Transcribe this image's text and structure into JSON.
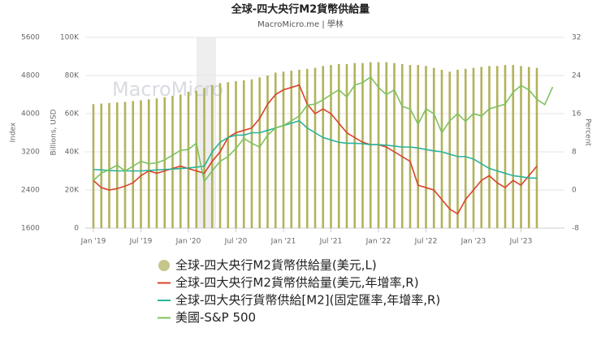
{
  "chart_data": {
    "type": "combo",
    "title": "全球-四大央行M2貨幣供給量",
    "subtitle": "MacroMicro.me | 學林",
    "watermark": "MacroMicro",
    "y_label": "Billions, USD",
    "y2_label": "Percent",
    "y3_label": "Index",
    "categories": [
      "Jan '19",
      null,
      null,
      null,
      null,
      null,
      "Jul '19",
      null,
      null,
      null,
      null,
      null,
      "Jan '20",
      null,
      null,
      null,
      null,
      null,
      "Jul '20",
      null,
      null,
      null,
      null,
      null,
      "Jan '21",
      null,
      null,
      null,
      null,
      null,
      "Jul '21",
      null,
      null,
      null,
      null,
      null,
      "Jan '22",
      null,
      null,
      null,
      null,
      null,
      "Jul '22",
      null,
      null,
      null,
      null,
      null,
      "Jan '23",
      null,
      null,
      null,
      null,
      null,
      "Jul '23",
      null,
      null,
      null,
      null
    ],
    "ylim": [
      0,
      100000
    ],
    "yticks": [
      {
        "value": 0,
        "label": "0"
      },
      {
        "value": 20000,
        "label": "20K"
      },
      {
        "value": 40000,
        "label": "40K"
      },
      {
        "value": 60000,
        "label": "60K"
      },
      {
        "value": 80000,
        "label": "80K"
      },
      {
        "value": 100000,
        "label": "100K"
      }
    ],
    "y2lim": [
      -8,
      32
    ],
    "y2ticks": [
      -8,
      0,
      8,
      16,
      24,
      32
    ],
    "y3lim": [
      1600,
      5600
    ],
    "y3ticks": [
      1600,
      2400,
      3200,
      4000,
      4800,
      5600
    ],
    "grid": true,
    "series": [
      {
        "name": "全球-四大央行M2貨幣供給量(美元,L)",
        "kind": "bar",
        "axis": "y",
        "color": "#b3b25c",
        "values": [
          65000,
          65300,
          65600,
          65900,
          66200,
          66600,
          67000,
          67500,
          68000,
          68600,
          69300,
          70000,
          71500,
          72000,
          73500,
          75000,
          76000,
          76500,
          77000,
          77500,
          78000,
          79000,
          80000,
          81500,
          82000,
          82500,
          83000,
          83500,
          84000,
          85000,
          85500,
          86000,
          86000,
          86500,
          86500,
          87000,
          87000,
          87000,
          86500,
          86000,
          85500,
          85500,
          85000,
          84000,
          83000,
          82000,
          83000,
          83500,
          84000,
          84500,
          85000,
          85000,
          85500,
          85500,
          85000,
          84500,
          84000,
          null,
          null
        ]
      },
      {
        "name": "全球-四大央行M2貨幣供給量(美元,年增率,R)",
        "kind": "line",
        "axis": "y2",
        "color": "#d9432b",
        "values": [
          2,
          0.5,
          0,
          0.3,
          0.8,
          1.5,
          3,
          4,
          3.5,
          4,
          4.5,
          5,
          4.5,
          4,
          3.5,
          6,
          8,
          11,
          12,
          12.5,
          13,
          15,
          18,
          20,
          21,
          21.5,
          22,
          18,
          16,
          17,
          16,
          14,
          12,
          11,
          10,
          9.5,
          9.5,
          9,
          8,
          7,
          6,
          1,
          0.5,
          0,
          -2,
          -4,
          -5,
          -2,
          0,
          2,
          3,
          1.5,
          0.5,
          2,
          1,
          3,
          5,
          null,
          null
        ]
      },
      {
        "name": "全球-四大央行貨幣供給[M2](固定匯率,年增率,R)",
        "kind": "line",
        "axis": "y2",
        "color": "#2bb39a",
        "values": [
          4.3,
          4.2,
          4.1,
          4,
          4,
          4,
          4,
          4.1,
          4.2,
          4.3,
          4.4,
          4.5,
          4.6,
          4.8,
          5,
          8,
          10,
          11,
          11.5,
          11.5,
          12,
          12,
          12.5,
          13,
          13.5,
          14,
          14.5,
          13,
          12,
          11,
          10.5,
          10,
          9.8,
          9.8,
          9.7,
          9.5,
          9.5,
          9.4,
          9.2,
          9,
          9,
          8.8,
          8.5,
          8.2,
          8,
          7.5,
          7,
          7,
          6.5,
          5.5,
          4.5,
          4,
          3.5,
          3,
          2.8,
          2.5,
          2.5,
          null,
          null
        ]
      },
      {
        "name": "美國-S&P 500",
        "kind": "line",
        "axis": "y3",
        "color": "#7cc35f",
        "values": [
          2600,
          2750,
          2830,
          2920,
          2800,
          2900,
          3000,
          2950,
          2970,
          3030,
          3130,
          3230,
          3250,
          3380,
          2580,
          2800,
          3000,
          3100,
          3270,
          3480,
          3380,
          3300,
          3550,
          3700,
          3750,
          3850,
          3950,
          4180,
          4200,
          4290,
          4400,
          4500,
          4350,
          4600,
          4650,
          4770,
          4550,
          4400,
          4500,
          4150,
          4100,
          3780,
          4100,
          4000,
          3600,
          3850,
          4000,
          3840,
          4000,
          3950,
          4100,
          4150,
          4200,
          4450,
          4590,
          4500,
          4300,
          4190,
          4560
        ]
      }
    ]
  }
}
